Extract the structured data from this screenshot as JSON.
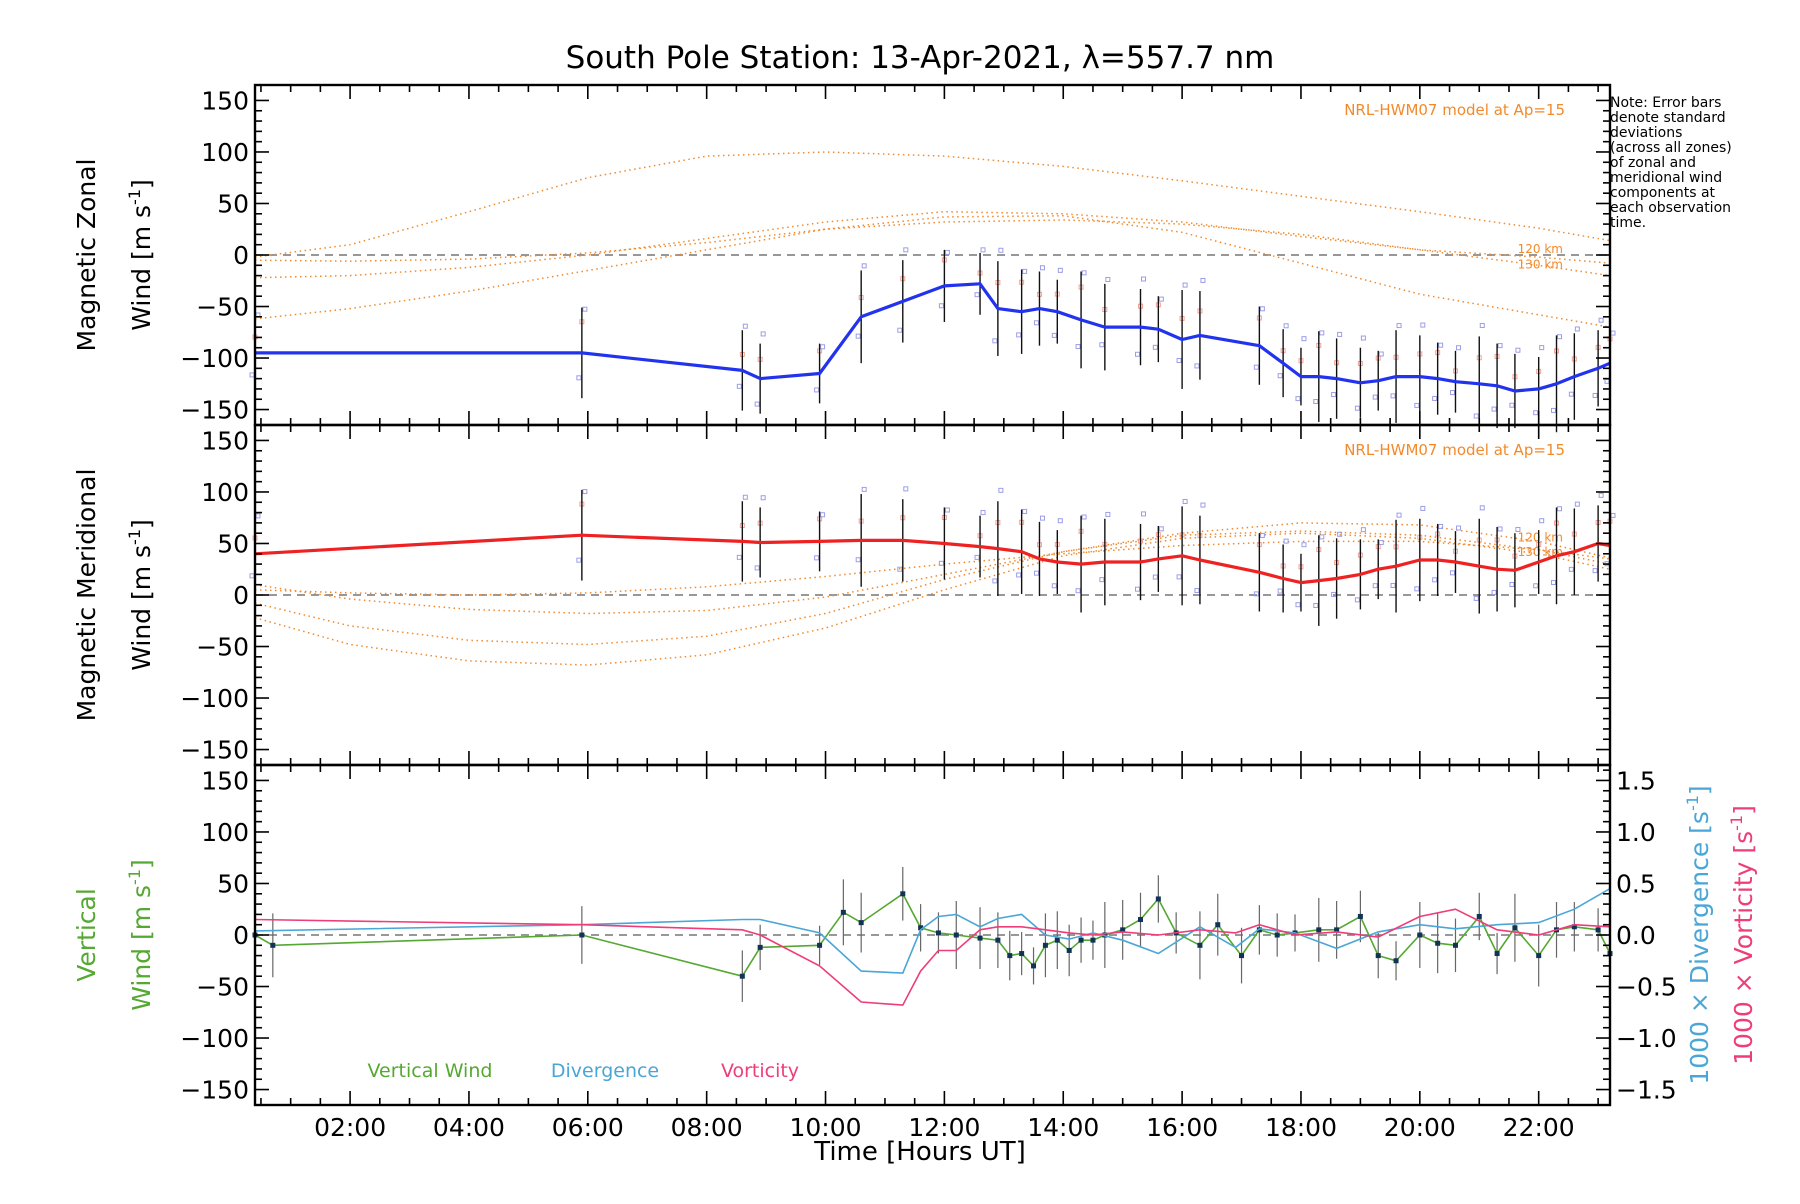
{
  "title": "South Pole Station: 13-Apr-2021, λ=557.7 nm",
  "note": {
    "lines": [
      "Note: Error bars",
      "denote standard",
      "deviations",
      "(across all zones)",
      "of zonal and",
      "meridional wind",
      "components at",
      "each observation",
      "time."
    ]
  },
  "colors": {
    "zonal": "#2233ee",
    "meridional": "#ee2222",
    "model": "#f28a2c",
    "vertical": "#55a832",
    "divergence": "#4aa6d6",
    "vorticity": "#ee3d78",
    "zone_points": "#9b9ee6"
  },
  "xaxis": {
    "label": "Time [Hours UT]",
    "range_hours": [
      0.4,
      23.2
    ],
    "tick_labels": [
      {
        "t": 2,
        "label": "02:00"
      },
      {
        "t": 4,
        "label": "04:00"
      },
      {
        "t": 6,
        "label": "06:00"
      },
      {
        "t": 8,
        "label": "08:00"
      },
      {
        "t": 10,
        "label": "10:00"
      },
      {
        "t": 12,
        "label": "12:00"
      },
      {
        "t": 14,
        "label": "14:00"
      },
      {
        "t": 16,
        "label": "16:00"
      },
      {
        "t": 18,
        "label": "18:00"
      },
      {
        "t": 20,
        "label": "20:00"
      },
      {
        "t": 22,
        "label": "22:00"
      }
    ]
  },
  "chart_data": [
    {
      "type": "line",
      "panel": "zonal",
      "ylabel_line1": "Magnetic Zonal",
      "ylabel_line2": "Wind [m s-1]",
      "ylim": [
        -165,
        165
      ],
      "yticks": [
        {
          "v": 150,
          "label": "150"
        },
        {
          "v": 100,
          "label": "100"
        },
        {
          "v": 50,
          "label": "50"
        },
        {
          "v": 0,
          "label": "0"
        },
        {
          "v": -50,
          "label": "−50"
        },
        {
          "v": -100,
          "label": "−100"
        },
        {
          "v": -150,
          "label": "−150"
        }
      ],
      "annotation": "NRL-HWM07 model at Ap=15",
      "model_labels": [
        {
          "text": "120 km",
          "y": 2
        },
        {
          "text": "130 km",
          "y": -13
        }
      ],
      "x": [
        0.4,
        5.9,
        8.6,
        8.9,
        9.9,
        10.6,
        11.3,
        12.0,
        12.6,
        12.9,
        13.3,
        13.6,
        13.9,
        14.3,
        14.7,
        15.3,
        15.6,
        16.0,
        16.3,
        17.3,
        17.7,
        18.0,
        18.3,
        18.6,
        19.0,
        19.3,
        19.6,
        20.0,
        20.3,
        20.6,
        21.0,
        21.3,
        21.6,
        22.0,
        22.3,
        22.6,
        23.0,
        23.2
      ],
      "values": [
        -95,
        -95,
        -112,
        -120,
        -115,
        -60,
        -45,
        -30,
        -28,
        -52,
        -55,
        -52,
        -55,
        -63,
        -70,
        -70,
        -72,
        -82,
        -78,
        -88,
        -105,
        -118,
        -118,
        -120,
        -124,
        -122,
        -118,
        -118,
        -120,
        -123,
        -125,
        -127,
        -132,
        -130,
        -125,
        -118,
        -110,
        -105
      ],
      "model_curves": [
        {
          "name": "zonal-high",
          "x": [
            0.4,
            2,
            4,
            6,
            8,
            10,
            12,
            14,
            16,
            18,
            20,
            22,
            23.2
          ],
          "y": [
            -2,
            10,
            42,
            75,
            96,
            100,
            96,
            86,
            72,
            57,
            42,
            26,
            14
          ]
        },
        {
          "name": "zonal-120",
          "x": [
            0.4,
            2,
            4,
            6,
            8,
            10,
            12,
            14,
            16,
            18,
            20,
            22,
            23.2
          ],
          "y": [
            -22,
            -20,
            -12,
            0,
            16,
            32,
            42,
            40,
            32,
            18,
            5,
            -2,
            -8
          ]
        },
        {
          "name": "zonal-130",
          "x": [
            0.4,
            2,
            4,
            6,
            8,
            10,
            12,
            14,
            16,
            18,
            20,
            22,
            23.2
          ],
          "y": [
            -62,
            -52,
            -35,
            -15,
            5,
            25,
            37,
            38,
            22,
            -8,
            -38,
            -58,
            -70
          ]
        },
        {
          "name": "zonal-mid",
          "x": [
            0.4,
            2,
            4,
            6,
            8,
            10,
            12,
            14,
            16,
            18,
            20,
            22,
            23.2
          ],
          "y": [
            -5,
            -6,
            -4,
            2,
            12,
            25,
            32,
            34,
            30,
            20,
            5,
            -10,
            -20
          ]
        }
      ]
    },
    {
      "type": "line",
      "panel": "meridional",
      "ylabel_line1": "Magnetic Meridional",
      "ylabel_line2": "Wind [m s-1]",
      "ylim": [
        -165,
        165
      ],
      "yticks": [
        {
          "v": 150,
          "label": "150"
        },
        {
          "v": 100,
          "label": "100"
        },
        {
          "v": 50,
          "label": "50"
        },
        {
          "v": 0,
          "label": "0"
        },
        {
          "v": -50,
          "label": "−50"
        },
        {
          "v": -100,
          "label": "−100"
        },
        {
          "v": -150,
          "label": "−150"
        }
      ],
      "annotation": "NRL-HWM07 model at Ap=15",
      "model_labels": [
        {
          "text": "120 km",
          "y": 52
        },
        {
          "text": "130 km",
          "y": 38
        }
      ],
      "x": [
        0.4,
        5.9,
        8.6,
        8.9,
        9.9,
        10.6,
        11.3,
        12.0,
        12.6,
        12.9,
        13.3,
        13.6,
        13.9,
        14.3,
        14.7,
        15.3,
        15.6,
        16.0,
        16.3,
        17.3,
        17.7,
        18.0,
        18.3,
        18.6,
        19.0,
        19.3,
        19.6,
        20.0,
        20.3,
        20.6,
        21.0,
        21.3,
        21.6,
        22.0,
        22.3,
        22.6,
        23.0,
        23.2
      ],
      "values": [
        40,
        58,
        52,
        51,
        52,
        53,
        53,
        50,
        47,
        45,
        42,
        35,
        32,
        30,
        32,
        32,
        35,
        38,
        34,
        22,
        16,
        12,
        14,
        16,
        20,
        25,
        28,
        34,
        34,
        32,
        28,
        25,
        24,
        32,
        38,
        42,
        50,
        48
      ],
      "model_curves": [
        {
          "name": "mer-a",
          "x": [
            0.4,
            2,
            4,
            6,
            8,
            10,
            12,
            14,
            16,
            18,
            20,
            22,
            23.2
          ],
          "y": [
            10,
            -4,
            -14,
            -18,
            -15,
            -2,
            20,
            42,
            60,
            70,
            68,
            52,
            36
          ]
        },
        {
          "name": "mer-b",
          "x": [
            0.4,
            2,
            4,
            6,
            8,
            10,
            12,
            14,
            16,
            18,
            20,
            22,
            23.2
          ],
          "y": [
            -8,
            -30,
            -44,
            -48,
            -40,
            -18,
            15,
            42,
            58,
            62,
            58,
            44,
            30
          ]
        },
        {
          "name": "mer-c",
          "x": [
            0.4,
            2,
            4,
            6,
            8,
            10,
            12,
            14,
            16,
            18,
            20,
            22,
            23.2
          ],
          "y": [
            -22,
            -48,
            -64,
            -68,
            -58,
            -32,
            5,
            38,
            55,
            60,
            55,
            40,
            25
          ]
        },
        {
          "name": "mer-d",
          "x": [
            0.4,
            2,
            4,
            6,
            8,
            10,
            12,
            14,
            16,
            18,
            20,
            22,
            23.2
          ],
          "y": [
            5,
            2,
            0,
            2,
            8,
            18,
            30,
            40,
            48,
            52,
            52,
            44,
            35
          ]
        }
      ]
    },
    {
      "type": "line",
      "panel": "vertical",
      "ylabel_line1": "Vertical",
      "ylabel_line2": "Wind [m s-1]",
      "ylim": [
        -165,
        165
      ],
      "yticks": [
        {
          "v": 150,
          "label": "150"
        },
        {
          "v": 100,
          "label": "100"
        },
        {
          "v": 50,
          "label": "50"
        },
        {
          "v": 0,
          "label": "0"
        },
        {
          "v": -50,
          "label": "−50"
        },
        {
          "v": -100,
          "label": "−100"
        },
        {
          "v": -150,
          "label": "−150"
        }
      ],
      "right_axis": {
        "ylim": [
          -1.65,
          1.65
        ],
        "yticks": [
          {
            "v": 1.5,
            "label": "1.5"
          },
          {
            "v": 1.0,
            "label": "1.0"
          },
          {
            "v": 0.5,
            "label": "0.5"
          },
          {
            "v": 0.0,
            "label": "0.0"
          },
          {
            "v": -0.5,
            "label": "−0.5"
          },
          {
            "v": -1.0,
            "label": "−1.0"
          },
          {
            "v": -1.5,
            "label": "−1.5"
          }
        ],
        "label_divergence": "1000 × Divergence [s-1]",
        "label_vorticity": "1000 × Vorticity [s-1]"
      },
      "legend": [
        "Vertical Wind",
        "Divergence",
        "Vorticity"
      ],
      "series": [
        {
          "name": "Vertical Wind",
          "x": [
            0.4,
            0.7,
            5.9,
            8.6,
            8.9,
            9.9,
            10.3,
            10.6,
            11.3,
            11.6,
            11.9,
            12.2,
            12.6,
            12.9,
            13.1,
            13.3,
            13.5,
            13.7,
            13.9,
            14.1,
            14.3,
            14.5,
            14.7,
            15.0,
            15.3,
            15.6,
            15.9,
            16.3,
            16.6,
            17.0,
            17.3,
            17.6,
            17.9,
            18.3,
            18.6,
            19.0,
            19.3,
            19.6,
            20.0,
            20.3,
            20.6,
            21.0,
            21.3,
            21.6,
            22.0,
            22.3,
            22.6,
            23.0,
            23.2
          ],
          "values": [
            0,
            -10,
            0,
            -40,
            -12,
            -10,
            22,
            12,
            40,
            7,
            2,
            0,
            -3,
            -5,
            -20,
            -18,
            -30,
            -10,
            -5,
            -15,
            -5,
            -5,
            0,
            5,
            15,
            35,
            2,
            -10,
            10,
            -20,
            5,
            0,
            2,
            5,
            5,
            18,
            -20,
            -25,
            0,
            -8,
            -10,
            18,
            -18,
            7,
            -20,
            5,
            8,
            5,
            -18
          ]
        },
        {
          "name": "Divergence",
          "x": [
            0.4,
            5.9,
            8.6,
            8.9,
            9.9,
            10.6,
            11.3,
            11.6,
            11.9,
            12.2,
            12.6,
            12.9,
            13.3,
            13.7,
            14.1,
            14.5,
            15.0,
            15.6,
            16.3,
            16.9,
            17.3,
            17.9,
            18.6,
            19.3,
            20.0,
            20.6,
            21.3,
            22.0,
            22.6,
            23.2
          ],
          "values": [
            0.04,
            0.1,
            0.15,
            0.15,
            0.02,
            -0.35,
            -0.37,
            0.05,
            0.18,
            0.2,
            0.08,
            0.16,
            0.2,
            0.0,
            -0.04,
            0.02,
            -0.05,
            -0.18,
            0.08,
            -0.12,
            0.06,
            0.02,
            -0.13,
            0.03,
            0.1,
            0.06,
            0.1,
            0.12,
            0.25,
            0.45
          ]
        },
        {
          "name": "Vorticity",
          "x": [
            0.4,
            5.9,
            8.6,
            8.9,
            9.9,
            10.6,
            11.3,
            11.6,
            11.9,
            12.2,
            12.6,
            12.9,
            13.3,
            13.7,
            14.1,
            14.5,
            15.0,
            15.6,
            16.3,
            16.9,
            17.3,
            17.9,
            18.6,
            19.3,
            20.0,
            20.6,
            21.3,
            22.0,
            22.6,
            23.2
          ],
          "values": [
            0.15,
            0.1,
            0.05,
            0.0,
            -0.3,
            -0.65,
            -0.68,
            -0.35,
            -0.15,
            -0.15,
            0.05,
            0.08,
            0.08,
            0.05,
            0.02,
            0.0,
            0.03,
            0.0,
            0.05,
            0.02,
            0.1,
            0.0,
            0.03,
            -0.02,
            0.18,
            0.25,
            0.05,
            0.0,
            0.1,
            0.08
          ]
        }
      ]
    }
  ]
}
